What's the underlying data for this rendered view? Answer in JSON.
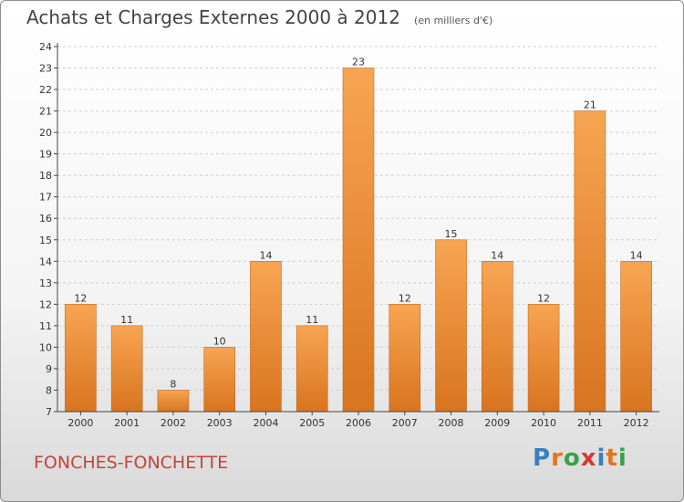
{
  "title": "Achats et Charges Externes 2000 à 2012",
  "subtitle": "(en milliers d'€)",
  "commune": "FONCHES-FONCHETTE",
  "logo": {
    "text": "Proxiti",
    "colors": [
      "#3a7fc1",
      "#e6731b",
      "#3aa04a",
      "#d23a30",
      "#3a7fc1",
      "#e6731b",
      "#3aa04a"
    ]
  },
  "colors": {
    "bar_top": "#f7a552",
    "bar_bottom": "#d9741f",
    "bar_edge": "#c8691c",
    "axis": "#444444",
    "grid": "#cfcfcf",
    "commune": "#c0463c"
  },
  "chart_data": {
    "type": "bar",
    "categories": [
      "2000",
      "2001",
      "2002",
      "2003",
      "2004",
      "2005",
      "2006",
      "2007",
      "2008",
      "2009",
      "2010",
      "2011",
      "2012"
    ],
    "values": [
      12,
      11,
      8,
      10,
      14,
      11,
      23,
      12,
      15,
      14,
      12,
      21,
      14
    ],
    "ylim": [
      7,
      24
    ],
    "yticks": [
      7,
      8,
      9,
      10,
      11,
      12,
      13,
      14,
      15,
      16,
      17,
      18,
      19,
      20,
      21,
      22,
      23,
      24
    ],
    "grid": true,
    "data_labels": true
  }
}
